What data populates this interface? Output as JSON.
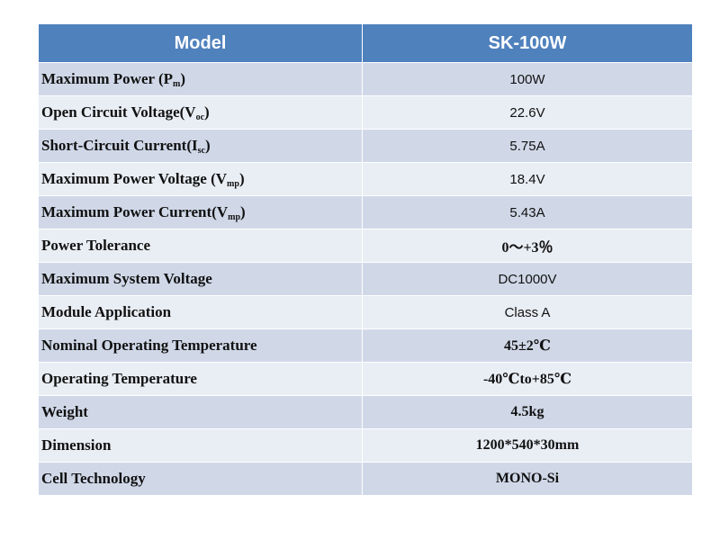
{
  "header": {
    "model_label": "Model",
    "model_value": "SK-100W"
  },
  "rows": [
    {
      "label": "Maximum Power (P",
      "sub": "m",
      "suffix": ")",
      "value": "100W",
      "value_style": "sans"
    },
    {
      "label": "Open Circuit Voltage(V",
      "sub": "oc",
      "suffix": ")",
      "value": "22.6V",
      "value_style": "sans"
    },
    {
      "label": "Short-Circuit Current(I",
      "sub": "sc",
      "suffix": ")",
      "value": "5.75A",
      "value_style": "sans"
    },
    {
      "label": "Maximum Power Voltage (V",
      "sub": "mp",
      "suffix": ")",
      "value": "18.4V",
      "value_style": "sans"
    },
    {
      "label": "Maximum Power Current(V",
      "sub": "mp",
      "suffix": ")",
      "value": "5.43A",
      "value_style": "sans"
    },
    {
      "label": "Power Tolerance",
      "sub": "",
      "suffix": "",
      "value": "0～+3％",
      "value_style": "serif"
    },
    {
      "label": "Maximum System Voltage",
      "sub": "",
      "suffix": "",
      "value": "DC1000V",
      "value_style": "sans"
    },
    {
      "label": "Module Application",
      "sub": "",
      "suffix": "",
      "value": "Class A",
      "value_style": "sans"
    },
    {
      "label": "Nominal Operating Temperature",
      "sub": "",
      "suffix": "",
      "value": "45±2℃",
      "value_style": "serif"
    },
    {
      "label": "Operating Temperature",
      "sub": "",
      "suffix": "",
      "value": "-40℃to+85℃",
      "value_style": "serif"
    },
    {
      "label": "Weight",
      "sub": "",
      "suffix": "",
      "value": "4.5kg",
      "value_style": "serif"
    },
    {
      "label": "Dimension",
      "sub": "",
      "suffix": "",
      "value": "1200*540*30mm",
      "value_style": "serif"
    },
    {
      "label": "Cell Technology",
      "sub": "",
      "suffix": "",
      "value": "MONO-Si",
      "value_style": "serif"
    }
  ],
  "colors": {
    "header_bg": "#4f81bd",
    "row_dark": "#d0d8e8",
    "row_light": "#e9edf4"
  }
}
